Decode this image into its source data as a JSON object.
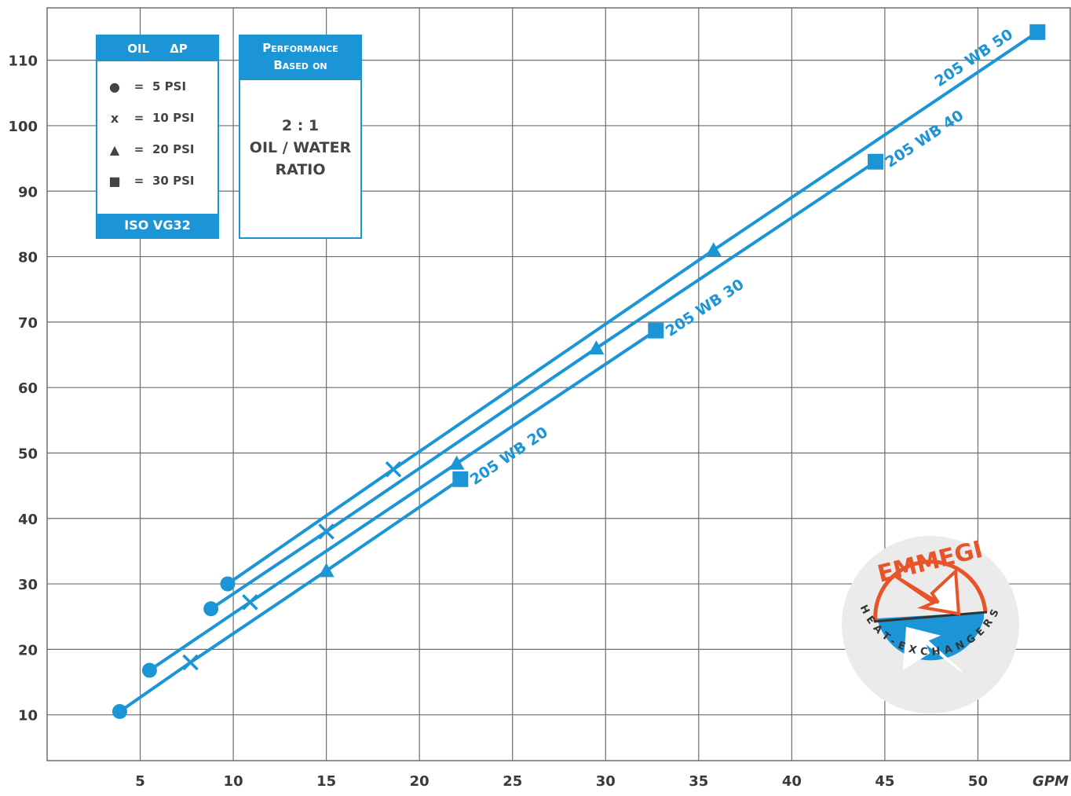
{
  "chart_data": {
    "type": "line",
    "xlabel": "GPM",
    "ylabel": "",
    "xlim": [
      0,
      55
    ],
    "ylim": [
      3,
      118
    ],
    "x_ticks": [
      5,
      10,
      15,
      20,
      25,
      30,
      35,
      40,
      45,
      50
    ],
    "y_ticks": [
      10,
      20,
      30,
      40,
      50,
      60,
      70,
      80,
      90,
      100,
      110
    ],
    "grid": true,
    "series": [
      {
        "name": "205 WB 20",
        "points": [
          {
            "x": 3.9,
            "y": 10.5,
            "marker": "circle"
          },
          {
            "x": 7.7,
            "y": 18.0,
            "marker": "x"
          },
          {
            "x": 15.0,
            "y": 32.0,
            "marker": "triangle"
          },
          {
            "x": 22.2,
            "y": 46.0,
            "marker": "square"
          }
        ]
      },
      {
        "name": "205 WB 30",
        "points": [
          {
            "x": 5.5,
            "y": 16.8,
            "marker": "circle"
          },
          {
            "x": 10.9,
            "y": 27.2,
            "marker": "x"
          },
          {
            "x": 22.0,
            "y": 48.4,
            "marker": "triangle"
          },
          {
            "x": 32.7,
            "y": 68.7,
            "marker": "square"
          }
        ]
      },
      {
        "name": "205 WB 40",
        "points": [
          {
            "x": 8.8,
            "y": 26.2,
            "marker": "circle"
          },
          {
            "x": 15.0,
            "y": 38.0,
            "marker": "x"
          },
          {
            "x": 29.5,
            "y": 66.0,
            "marker": "triangle"
          },
          {
            "x": 44.5,
            "y": 94.5,
            "marker": "square"
          }
        ]
      },
      {
        "name": "205 WB 50",
        "points": [
          {
            "x": 9.7,
            "y": 30.0,
            "marker": "circle"
          },
          {
            "x": 18.6,
            "y": 47.5,
            "marker": "x"
          },
          {
            "x": 35.8,
            "y": 81.0,
            "marker": "triangle"
          },
          {
            "x": 53.2,
            "y": 114.3,
            "marker": "square"
          }
        ]
      }
    ],
    "series_color": "#1b95d5",
    "grid_color": "#6e6e6e"
  },
  "legend": {
    "title_oil": "OIL",
    "title_dp": "ΔP",
    "rows": [
      {
        "symbol": "●",
        "eq": "=",
        "label": "5 PSI"
      },
      {
        "symbol": "x",
        "eq": "=",
        "label": "10 PSI"
      },
      {
        "symbol": "▲",
        "eq": "=",
        "label": "20 PSI"
      },
      {
        "symbol": "■",
        "eq": "=",
        "label": "30 PSI"
      }
    ],
    "footer": "ISO VG32"
  },
  "perf_box": {
    "head_line1": "Performance",
    "head_line2": "Based on",
    "ratio": "2 : 1",
    "line2": "OIL / WATER",
    "line3": "RATIO"
  },
  "logo": {
    "brand": "EMMEGI",
    "tagline": "HEAT-EXCHANGERS",
    "brand_color": "#e8542a",
    "accent_color": "#1b95d5"
  }
}
